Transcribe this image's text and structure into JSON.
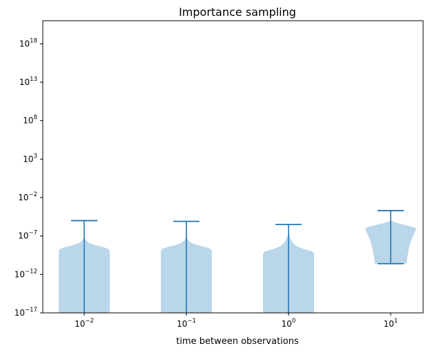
{
  "chart_data": {
    "type": "violin",
    "title": "Importance sampling",
    "xlabel": "time between observations",
    "ylabel": "",
    "yscale": "log",
    "ylim_exponents": [
      -17,
      21
    ],
    "ytick_exponents": [
      -17,
      -12,
      -7,
      -2,
      3,
      8,
      13,
      18
    ],
    "ytick_base": "10",
    "categories": [
      {
        "label_base": "10",
        "label_exp": "−2"
      },
      {
        "label_base": "10",
        "label_exp": "−1"
      },
      {
        "label_base": "10",
        "label_exp": "0"
      },
      {
        "label_base": "10",
        "label_exp": "1"
      }
    ],
    "series": [
      {
        "min_exp": -17,
        "max_exp": -5.0,
        "profile": [
          [
            -17,
            1.0
          ],
          [
            -9,
            1.0
          ],
          [
            -8.7,
            0.95
          ],
          [
            -8.5,
            0.8
          ],
          [
            -8.2,
            0.45
          ],
          [
            -7.9,
            0.2
          ],
          [
            -7.6,
            0.08
          ],
          [
            -7.3,
            0.03
          ],
          [
            -7.0,
            0.0
          ]
        ]
      },
      {
        "min_exp": -17,
        "max_exp": -5.1,
        "profile": [
          [
            -17,
            1.0
          ],
          [
            -9,
            1.0
          ],
          [
            -8.7,
            0.95
          ],
          [
            -8.5,
            0.8
          ],
          [
            -8.2,
            0.45
          ],
          [
            -7.9,
            0.2
          ],
          [
            -7.6,
            0.08
          ],
          [
            -7.3,
            0.03
          ],
          [
            -7.0,
            0.0
          ]
        ]
      },
      {
        "min_exp": -17,
        "max_exp": -5.5,
        "profile": [
          [
            -17,
            1.0
          ],
          [
            -9.3,
            1.0
          ],
          [
            -9.0,
            0.92
          ],
          [
            -8.7,
            0.6
          ],
          [
            -8.3,
            0.3
          ],
          [
            -7.8,
            0.15
          ],
          [
            -7.2,
            0.06
          ],
          [
            -6.6,
            0.0
          ]
        ]
      },
      {
        "min_exp": -10.6,
        "max_exp": -3.7,
        "profile": [
          [
            -10.6,
            0.62
          ],
          [
            -10.0,
            0.64
          ],
          [
            -9.2,
            0.68
          ],
          [
            -8.5,
            0.72
          ],
          [
            -7.8,
            0.78
          ],
          [
            -7.2,
            0.85
          ],
          [
            -6.6,
            0.93
          ],
          [
            -6.1,
            1.0
          ],
          [
            -5.9,
            0.95
          ],
          [
            -5.6,
            0.6
          ],
          [
            -5.3,
            0.25
          ],
          [
            -5.0,
            0.0
          ]
        ]
      }
    ],
    "colors": {
      "violin_fill": "#bad6ea",
      "whisker": "#1f77b4",
      "axis": "#000000"
    }
  }
}
